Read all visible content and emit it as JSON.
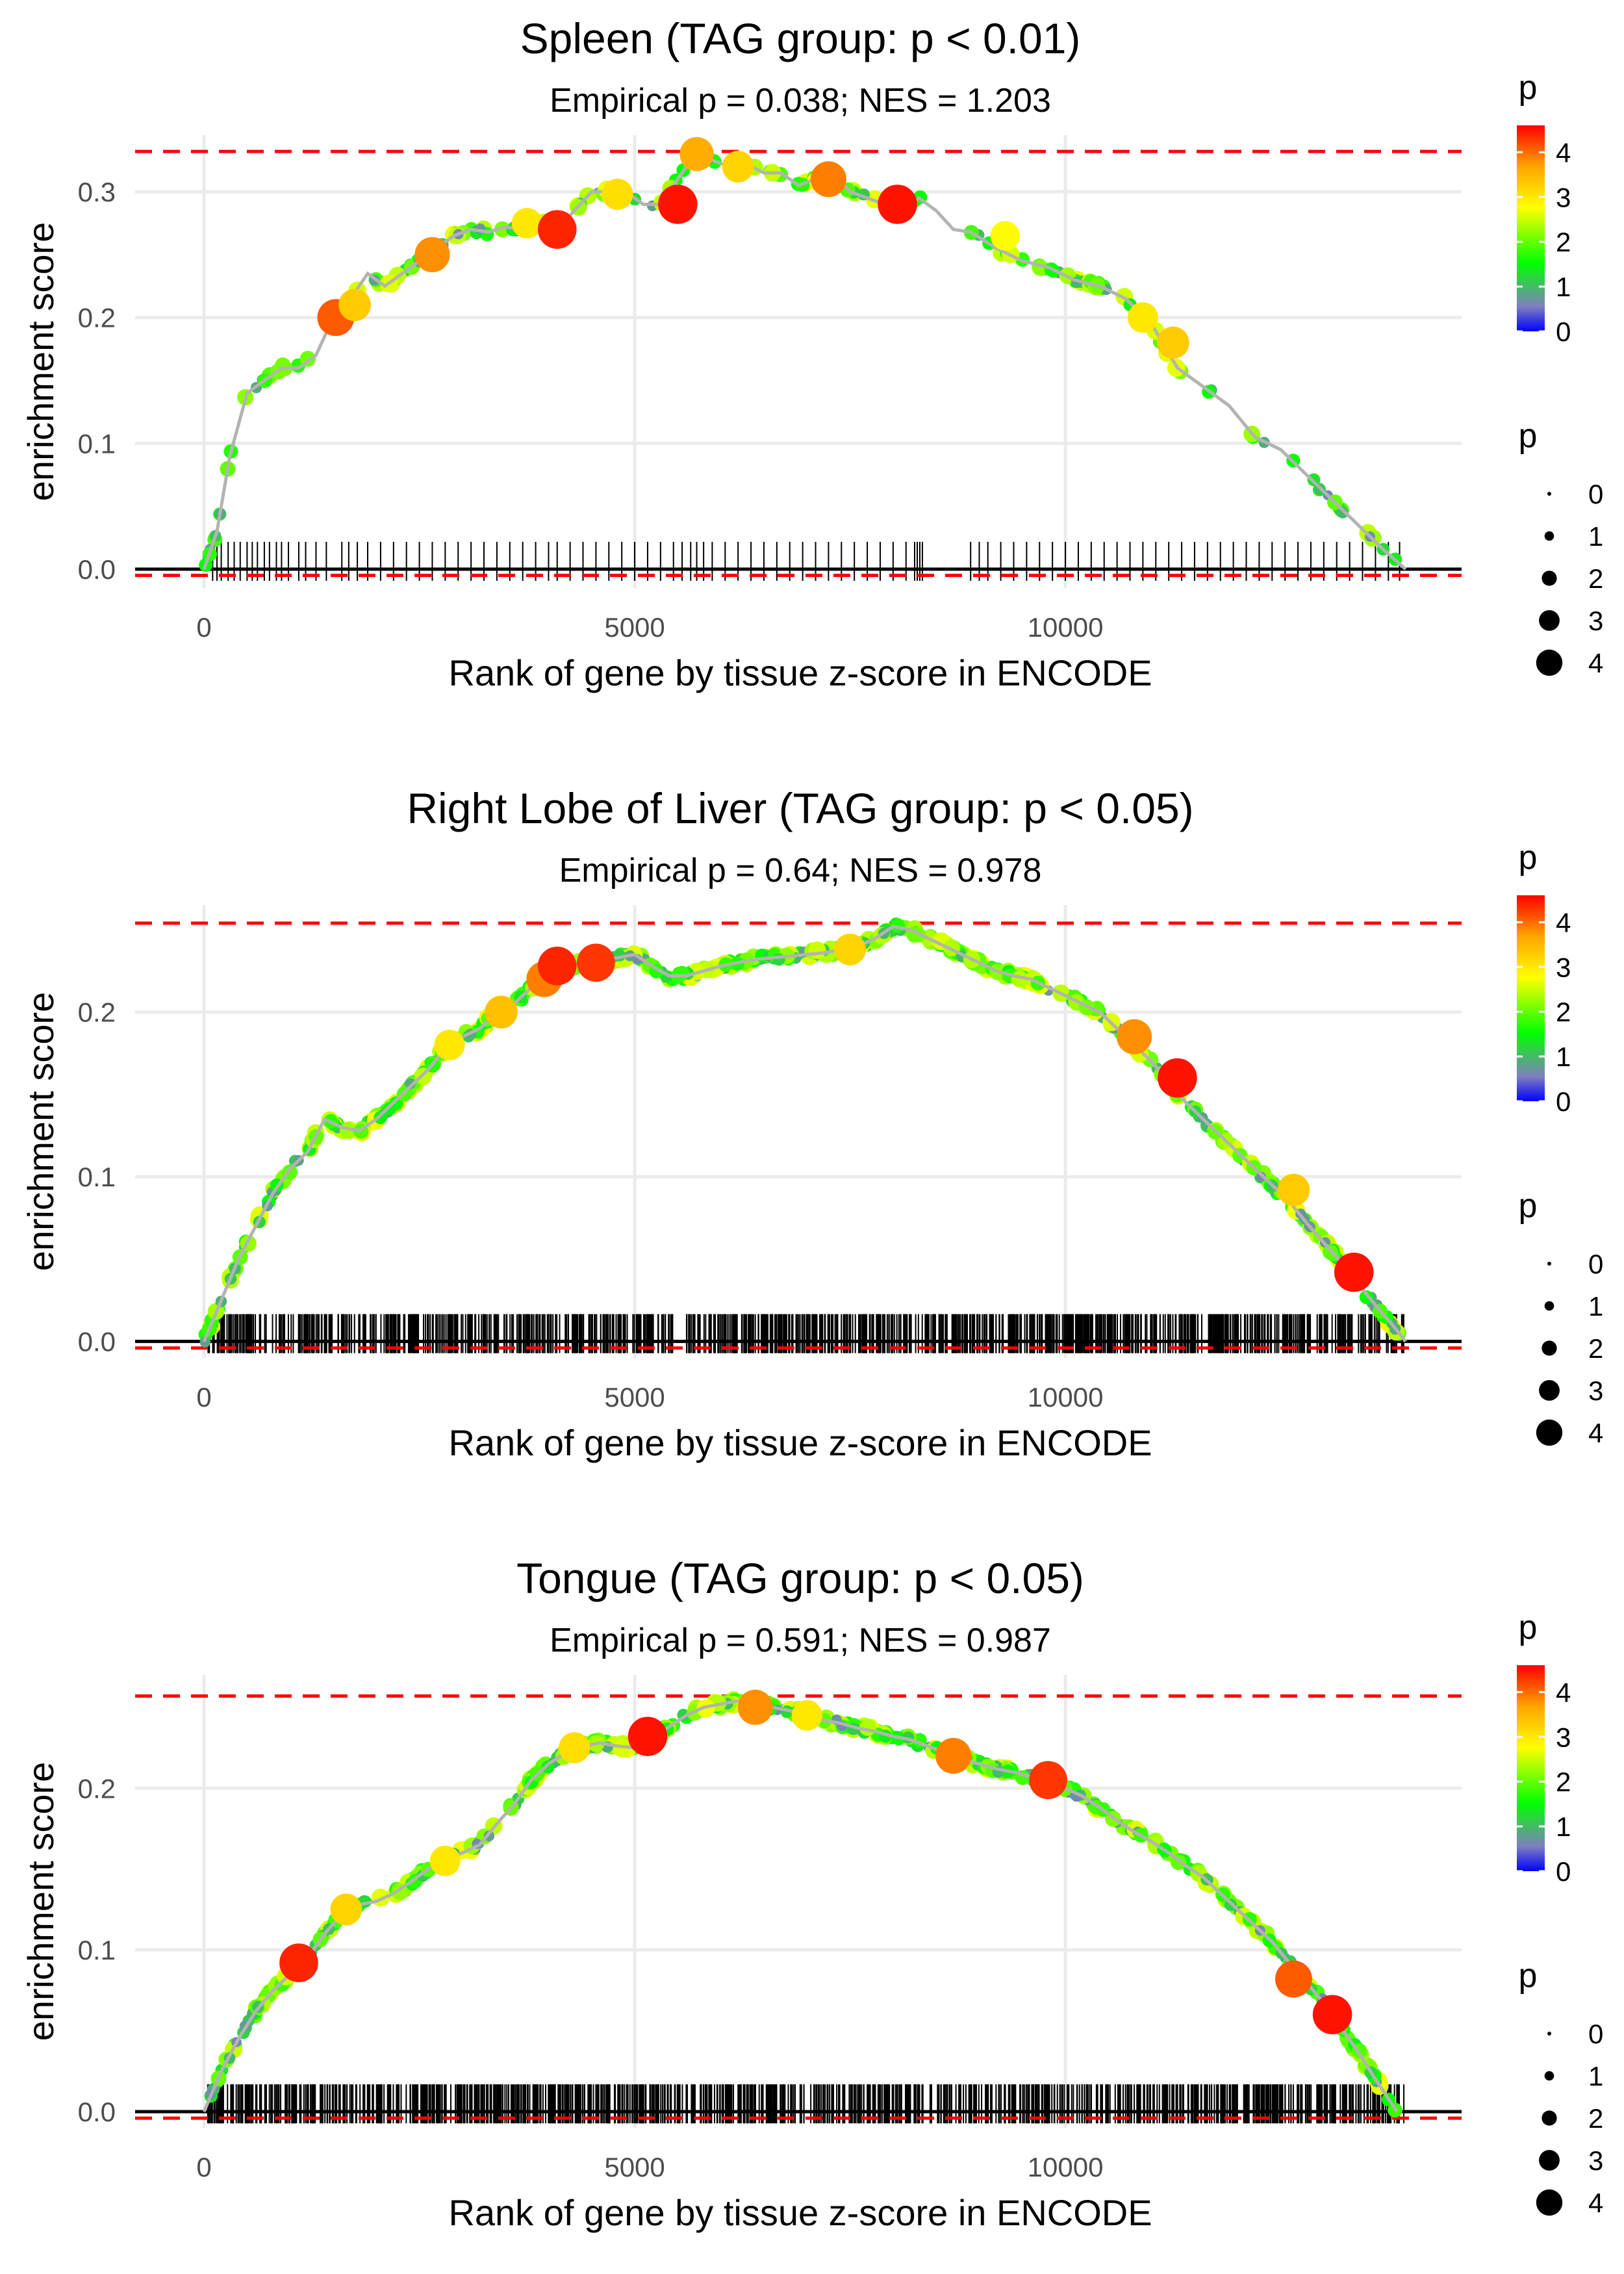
{
  "panels": [
    {
      "title": "Spleen (TAG group: p < 0.01)",
      "subtitle": "Empirical p = 0.038; NES = 1.203",
      "xlabel": "Rank of gene by tissue z-score in ENCODE",
      "ylabel": "enrichment score",
      "colorbar_title": "p",
      "size_title": "p"
    },
    {
      "title": "Right Lobe of Liver (TAG group: p < 0.05)",
      "subtitle": "Empirical p = 0.64; NES = 0.978",
      "xlabel": "Rank of gene by tissue z-score in ENCODE",
      "ylabel": "enrichment score",
      "colorbar_title": "p",
      "size_title": "p"
    },
    {
      "title": "Tongue (TAG group: p < 0.05)",
      "subtitle": "Empirical p = 0.591; NES = 0.987",
      "xlabel": "Rank of gene by tissue z-score in ENCODE",
      "ylabel": "enrichment score",
      "colorbar_title": "p",
      "size_title": "p"
    }
  ],
  "colors": {
    "background": "#ffffff",
    "grid": "#ebebeb",
    "curve": "#b3b3b3",
    "ref_dashed": "#ff0000",
    "zero_line": "#000000",
    "rug": "#000000",
    "gradient": [
      "#0000ff",
      "#7f7fbf",
      "#00ff00",
      "#ffff00",
      "#ffa500",
      "#ff0000"
    ]
  },
  "chart_data": [
    {
      "type": "line",
      "title": "Spleen (TAG group: p < 0.01)",
      "subtitle": "Empirical p = 0.038; NES = 1.203",
      "xlabel": "Rank of gene by tissue z-score in ENCODE",
      "ylabel": "enrichment score",
      "xlim": [
        -800,
        14600
      ],
      "ylim": [
        -0.015,
        0.345
      ],
      "x_ticks": [
        0,
        5000,
        10000
      ],
      "x_tick_labels": [
        "0",
        "5000",
        "10000"
      ],
      "y_ticks": [
        0.0,
        0.1,
        0.2,
        0.3
      ],
      "y_tick_labels": [
        "0.0",
        "0.1",
        "0.2",
        "0.3"
      ],
      "max_es_line": 0.332,
      "min_es_line": -0.005,
      "curve_x": [
        0,
        150,
        300,
        500,
        700,
        900,
        1100,
        1300,
        1500,
        1700,
        1900,
        2100,
        2300,
        2500,
        2700,
        2900,
        3100,
        3300,
        3500,
        3700,
        3900,
        4100,
        4300,
        4500,
        4700,
        4900,
        5100,
        5300,
        5500,
        5700,
        5900,
        6100,
        6300,
        6500,
        6700,
        6900,
        7100,
        7300,
        7500,
        7700,
        7900,
        8100,
        8300,
        8500,
        8700,
        8900,
        9200,
        9500,
        9800,
        10100,
        10400,
        10700,
        11000,
        11300,
        11600,
        11900,
        12200,
        12500,
        12800,
        13100,
        13400,
        13700,
        13950
      ],
      "curve_y": [
        0.0,
        0.03,
        0.09,
        0.14,
        0.15,
        0.16,
        0.16,
        0.17,
        0.2,
        0.215,
        0.235,
        0.225,
        0.235,
        0.245,
        0.255,
        0.265,
        0.27,
        0.268,
        0.272,
        0.27,
        0.275,
        0.27,
        0.285,
        0.3,
        0.3,
        0.3,
        0.29,
        0.29,
        0.31,
        0.33,
        0.325,
        0.32,
        0.322,
        0.315,
        0.315,
        0.305,
        0.31,
        0.315,
        0.3,
        0.295,
        0.29,
        0.287,
        0.295,
        0.285,
        0.27,
        0.268,
        0.255,
        0.245,
        0.24,
        0.23,
        0.225,
        0.215,
        0.195,
        0.16,
        0.145,
        0.13,
        0.105,
        0.095,
        0.075,
        0.055,
        0.035,
        0.015,
        0.0
      ],
      "highlight_points": [
        {
          "x": 1530,
          "y": 0.2,
          "p": 4.1
        },
        {
          "x": 1750,
          "y": 0.21,
          "p": 3.3
        },
        {
          "x": 2650,
          "y": 0.25,
          "p": 3.8
        },
        {
          "x": 3750,
          "y": 0.275,
          "p": 3.0
        },
        {
          "x": 4100,
          "y": 0.27,
          "p": 4.4
        },
        {
          "x": 4800,
          "y": 0.298,
          "p": 3.1
        },
        {
          "x": 5500,
          "y": 0.29,
          "p": 4.5
        },
        {
          "x": 5720,
          "y": 0.33,
          "p": 3.6
        },
        {
          "x": 6200,
          "y": 0.32,
          "p": 3.2
        },
        {
          "x": 7250,
          "y": 0.31,
          "p": 3.9
        },
        {
          "x": 8050,
          "y": 0.29,
          "p": 4.5
        },
        {
          "x": 9300,
          "y": 0.265,
          "p": 2.8
        },
        {
          "x": 10900,
          "y": 0.2,
          "p": 3.0
        },
        {
          "x": 11250,
          "y": 0.18,
          "p": 3.3
        }
      ],
      "rug_x": [
        100,
        150,
        200,
        280,
        350,
        420,
        500,
        560,
        620,
        700,
        760,
        840,
        900,
        980,
        1100,
        1180,
        1300,
        1420,
        1600,
        1680,
        1780,
        1900,
        2050,
        2200,
        2350,
        2500,
        2650,
        2800,
        2950,
        3100,
        3250,
        3400,
        3550,
        3700,
        3850,
        4000,
        4100,
        4250,
        4400,
        4550,
        4700,
        4850,
        5000,
        5150,
        5300,
        5450,
        5550,
        5650,
        5720,
        5800,
        5900,
        6050,
        6200,
        6350,
        6500,
        6650,
        6800,
        6950,
        7100,
        7250,
        7400,
        7550,
        7700,
        7850,
        8000,
        8150,
        8250,
        8280,
        8310,
        8340,
        8900,
        9000,
        9100,
        9250,
        9400,
        9550,
        9700,
        9850,
        10000,
        10150,
        10300,
        10450,
        10600,
        10750,
        10900,
        11050,
        11200,
        11350,
        11500,
        11650,
        11800,
        11950,
        12100,
        12250,
        12400,
        12550,
        12700,
        12850,
        13000,
        13150,
        13300,
        13450,
        13600,
        13750,
        13880
      ]
    },
    {
      "type": "line",
      "title": "Right Lobe of Liver (TAG group: p < 0.05)",
      "subtitle": "Empirical p = 0.64; NES = 0.978",
      "xlabel": "Rank of gene by tissue z-score in ENCODE",
      "ylabel": "enrichment score",
      "xlim": [
        -800,
        14600
      ],
      "ylim": [
        -0.01,
        0.265
      ],
      "x_ticks": [
        0,
        5000,
        10000
      ],
      "x_tick_labels": [
        "0",
        "5000",
        "10000"
      ],
      "y_ticks": [
        0.0,
        0.1,
        0.2
      ],
      "y_tick_labels": [
        "0.0",
        "0.1",
        "0.2"
      ],
      "max_es_line": 0.254,
      "min_es_line": -0.004,
      "curve_x": [
        0,
        200,
        400,
        600,
        800,
        1000,
        1200,
        1400,
        1600,
        1800,
        2000,
        2200,
        2400,
        2600,
        2800,
        3000,
        3200,
        3400,
        3600,
        3800,
        4000,
        4200,
        4400,
        4600,
        4800,
        5000,
        5200,
        5400,
        5600,
        5800,
        6000,
        6200,
        6400,
        6600,
        6800,
        7000,
        7200,
        7400,
        7600,
        7800,
        8000,
        8200,
        8400,
        8600,
        8800,
        9000,
        9200,
        9400,
        9600,
        9800,
        10000,
        10200,
        10400,
        10600,
        10800,
        11000,
        11200,
        11400,
        11600,
        11800,
        12000,
        12200,
        12400,
        12600,
        12800,
        13000,
        13200,
        13400,
        13600,
        13800,
        13950
      ],
      "curve_y": [
        0.0,
        0.025,
        0.05,
        0.07,
        0.09,
        0.105,
        0.115,
        0.135,
        0.13,
        0.128,
        0.135,
        0.145,
        0.155,
        0.165,
        0.178,
        0.185,
        0.19,
        0.2,
        0.205,
        0.215,
        0.225,
        0.228,
        0.23,
        0.232,
        0.233,
        0.235,
        0.228,
        0.222,
        0.222,
        0.225,
        0.228,
        0.23,
        0.232,
        0.233,
        0.234,
        0.235,
        0.236,
        0.238,
        0.24,
        0.245,
        0.252,
        0.25,
        0.245,
        0.24,
        0.235,
        0.23,
        0.225,
        0.222,
        0.22,
        0.215,
        0.21,
        0.205,
        0.2,
        0.19,
        0.18,
        0.17,
        0.158,
        0.145,
        0.135,
        0.125,
        0.115,
        0.105,
        0.095,
        0.085,
        0.072,
        0.06,
        0.048,
        0.035,
        0.022,
        0.01,
        0.0
      ],
      "highlight_points": [
        {
          "x": 2850,
          "y": 0.18,
          "p": 3.0
        },
        {
          "x": 3450,
          "y": 0.2,
          "p": 3.4
        },
        {
          "x": 3950,
          "y": 0.22,
          "p": 3.9
        },
        {
          "x": 4100,
          "y": 0.228,
          "p": 4.4
        },
        {
          "x": 4550,
          "y": 0.23,
          "p": 4.3
        },
        {
          "x": 7500,
          "y": 0.238,
          "p": 3.2
        },
        {
          "x": 10800,
          "y": 0.185,
          "p": 3.8
        },
        {
          "x": 11300,
          "y": 0.16,
          "p": 4.5
        },
        {
          "x": 12650,
          "y": 0.092,
          "p": 3.3
        },
        {
          "x": 13350,
          "y": 0.042,
          "p": 4.5
        }
      ],
      "rug_x": []
    },
    {
      "type": "line",
      "title": "Tongue (TAG group: p < 0.05)",
      "subtitle": "Empirical p = 0.591; NES = 0.987",
      "xlabel": "Rank of gene by tissue z-score in ENCODE",
      "ylabel": "enrichment score",
      "xlim": [
        -800,
        14600
      ],
      "ylim": [
        -0.01,
        0.27
      ],
      "x_ticks": [
        0,
        5000,
        10000
      ],
      "x_tick_labels": [
        "0",
        "5000",
        "10000"
      ],
      "y_ticks": [
        0.0,
        0.1,
        0.2
      ],
      "y_tick_labels": [
        "0.0",
        "0.1",
        "0.2"
      ],
      "max_es_line": 0.257,
      "min_es_line": -0.004,
      "curve_x": [
        0,
        200,
        400,
        600,
        800,
        1000,
        1200,
        1400,
        1600,
        1800,
        2000,
        2200,
        2400,
        2600,
        2800,
        3000,
        3200,
        3400,
        3600,
        3800,
        4000,
        4200,
        4400,
        4600,
        4800,
        5000,
        5200,
        5400,
        5600,
        5800,
        6000,
        6200,
        6400,
        6600,
        6800,
        7000,
        7200,
        7400,
        7600,
        7800,
        8000,
        8200,
        8400,
        8600,
        8800,
        9000,
        9200,
        9400,
        9600,
        9800,
        10000,
        10200,
        10400,
        10600,
        10800,
        11000,
        11200,
        11400,
        11600,
        11800,
        12000,
        12200,
        12400,
        12600,
        12800,
        13000,
        13200,
        13400,
        13600,
        13850
      ],
      "curve_y": [
        0.0,
        0.025,
        0.045,
        0.062,
        0.075,
        0.085,
        0.095,
        0.11,
        0.122,
        0.128,
        0.13,
        0.135,
        0.142,
        0.15,
        0.155,
        0.16,
        0.165,
        0.178,
        0.19,
        0.205,
        0.215,
        0.222,
        0.226,
        0.228,
        0.226,
        0.225,
        0.23,
        0.238,
        0.245,
        0.25,
        0.252,
        0.254,
        0.252,
        0.25,
        0.248,
        0.245,
        0.242,
        0.24,
        0.237,
        0.235,
        0.232,
        0.23,
        0.226,
        0.222,
        0.218,
        0.215,
        0.212,
        0.21,
        0.207,
        0.205,
        0.2,
        0.195,
        0.188,
        0.18,
        0.173,
        0.167,
        0.16,
        0.152,
        0.145,
        0.135,
        0.125,
        0.115,
        0.105,
        0.092,
        0.08,
        0.067,
        0.052,
        0.037,
        0.02,
        0.0
      ],
      "highlight_points": [
        {
          "x": 1100,
          "y": 0.092,
          "p": 4.4
        },
        {
          "x": 1650,
          "y": 0.125,
          "p": 3.2
        },
        {
          "x": 2800,
          "y": 0.155,
          "p": 3.0
        },
        {
          "x": 4300,
          "y": 0.225,
          "p": 3.1
        },
        {
          "x": 5150,
          "y": 0.232,
          "p": 4.5
        },
        {
          "x": 6400,
          "y": 0.25,
          "p": 3.8
        },
        {
          "x": 7000,
          "y": 0.245,
          "p": 3.0
        },
        {
          "x": 8700,
          "y": 0.22,
          "p": 3.9
        },
        {
          "x": 9800,
          "y": 0.205,
          "p": 4.3
        },
        {
          "x": 12650,
          "y": 0.082,
          "p": 4.1
        },
        {
          "x": 13100,
          "y": 0.06,
          "p": 4.5
        }
      ],
      "rug_x": []
    }
  ],
  "legend": {
    "colorbar_ticks": [
      0,
      1,
      2,
      3,
      4
    ],
    "colorbar_tick_labels": [
      "0",
      "1",
      "2",
      "3",
      "4"
    ],
    "colorbar_range": [
      0,
      4.6
    ],
    "size_values": [
      0,
      1,
      2,
      3,
      4
    ],
    "size_labels": [
      "0",
      "1",
      "2",
      "3",
      "4"
    ]
  }
}
